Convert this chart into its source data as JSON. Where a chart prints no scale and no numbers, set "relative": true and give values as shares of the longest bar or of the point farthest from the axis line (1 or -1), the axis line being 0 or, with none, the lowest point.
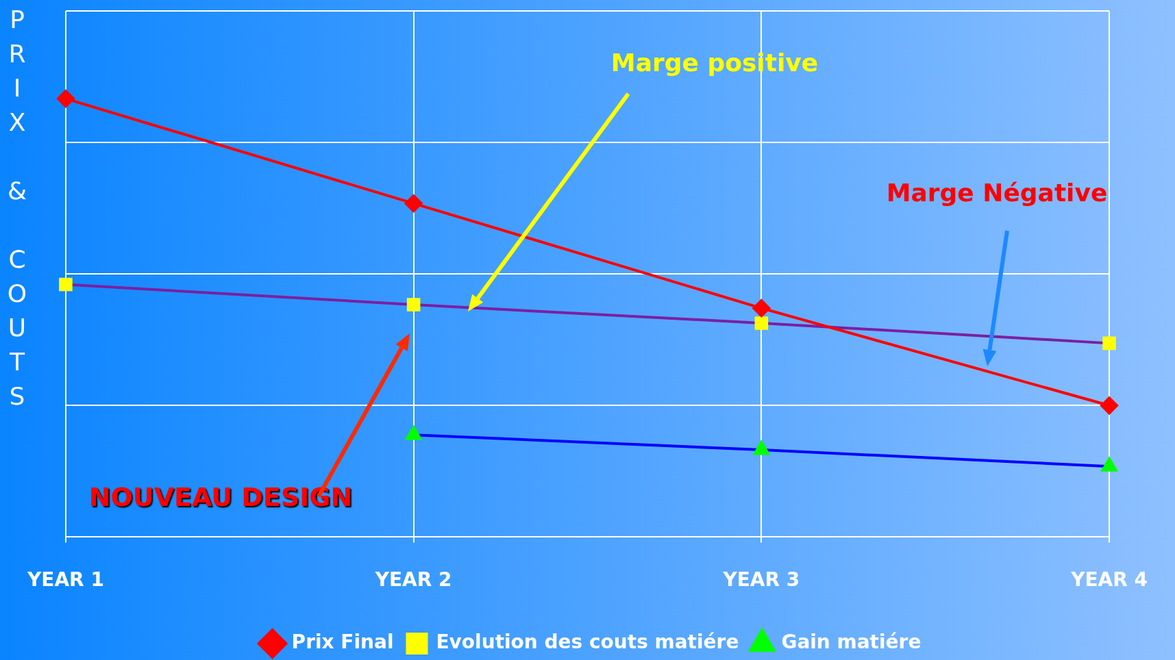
{
  "chart_data": {
    "type": "line",
    "relative": true,
    "ylabel": "PRIX & COUTS",
    "categories": [
      "YEAR 1",
      "YEAR 2",
      "YEAR 3",
      "YEAR 4"
    ],
    "grid": true,
    "legend": "bottom",
    "series": [
      {
        "name": "Prix Final",
        "color": "#ff0000",
        "colors": [
          "#ff0000",
          "#ff0000",
          "#ff0000",
          "#ff0000"
        ],
        "marker": "diamond",
        "values": [
          1,
          0.761,
          0.522,
          0.3
        ]
      },
      {
        "name": "Evolution des couts matiére",
        "color": "#7b1fa2",
        "colors": [
          "#ffff00",
          "#ffff00",
          "#ffff00",
          "#ffff00"
        ],
        "marker": "square",
        "values": [
          0.576,
          0.53,
          0.488,
          0.442
        ]
      },
      {
        "name": "Gain matiére",
        "color": "#0000ff",
        "colors": [
          "#00ff00",
          "#00ff00",
          "#00ff00",
          "#00ff00"
        ],
        "marker": "triangle",
        "values": [
          null,
          0.233,
          0.199,
          0.161
        ]
      }
    ],
    "annotations": [
      "Marge positive",
      "Marge Négative",
      "NOUVEAU DESIGN"
    ]
  }
}
